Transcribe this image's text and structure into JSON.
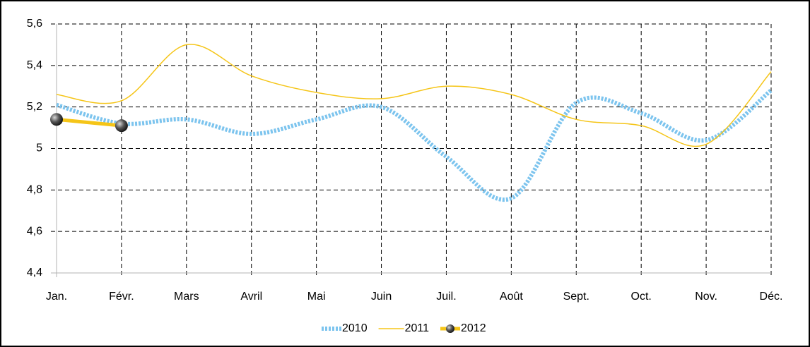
{
  "chart_data": {
    "type": "line",
    "categories": [
      "Jan.",
      "Févr.",
      "Mars",
      "Avril",
      "Mai",
      "Juin",
      "Juil.",
      "Août",
      "Sept.",
      "Oct.",
      "Nov.",
      "Déc."
    ],
    "series": [
      {
        "name": "2010",
        "color": "#7cc4ee",
        "values": [
          5.21,
          5.12,
          5.14,
          5.07,
          5.14,
          5.2,
          4.96,
          4.76,
          5.22,
          5.17,
          5.04,
          5.28
        ]
      },
      {
        "name": "2011",
        "color": "#f5c518",
        "values": [
          5.26,
          5.23,
          5.5,
          5.35,
          5.27,
          5.24,
          5.3,
          5.26,
          5.14,
          5.11,
          5.02,
          5.37
        ]
      },
      {
        "name": "2012",
        "color": "#f5c518",
        "values": [
          5.14,
          5.11,
          null,
          null,
          null,
          null,
          null,
          null,
          null,
          null,
          null,
          null
        ]
      }
    ],
    "ylim": [
      4.4,
      5.6
    ],
    "yticks": [
      {
        "value": 4.4,
        "label": "4,4"
      },
      {
        "value": 4.6,
        "label": "4,6"
      },
      {
        "value": 4.8,
        "label": "4,8"
      },
      5,
      {
        "value": 5.2,
        "label": "5,2"
      },
      {
        "value": 5.4,
        "label": "5,4"
      },
      {
        "value": 5.6,
        "label": "5,6"
      }
    ],
    "grid": true,
    "legend": "bottom"
  }
}
